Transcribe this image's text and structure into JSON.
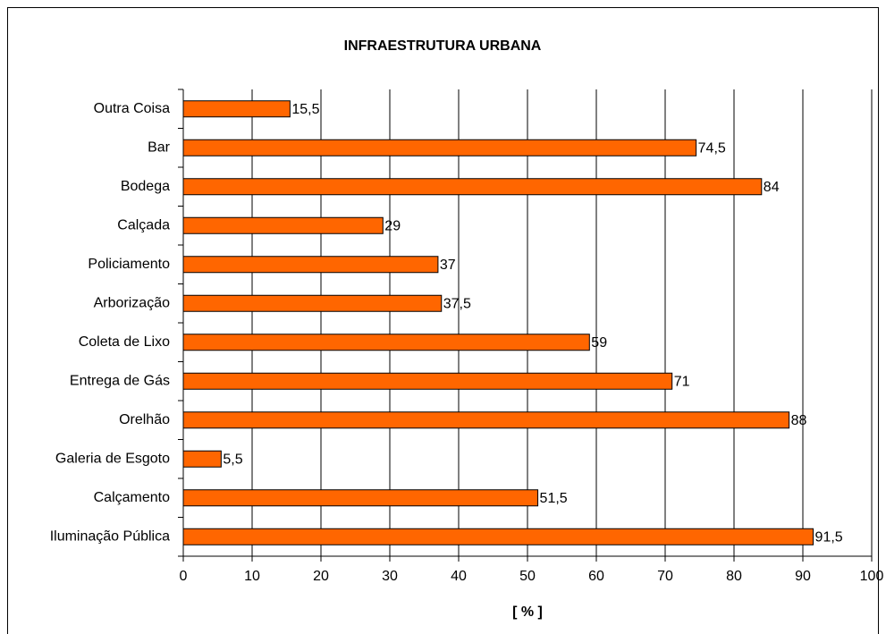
{
  "chart_data": {
    "type": "hbar",
    "title": "INFRAESTRUTURA URBANA",
    "x_label": "[ % ]",
    "categories": [
      "Outra Coisa",
      "Bar",
      "Bodega",
      "Calçada",
      "Policiamento",
      "Arborização",
      "Coleta de Lixo",
      "Entrega de Gás",
      "Orelhão",
      "Galeria de Esgoto",
      "Calçamento",
      "Iluminação Pública"
    ],
    "values": [
      15.5,
      74.5,
      84,
      29,
      37,
      37.5,
      59,
      71,
      88,
      5.5,
      51.5,
      91.5
    ],
    "value_labels": [
      "15,5",
      "74,5",
      "84",
      "29",
      "37",
      "37,5",
      "59",
      "71",
      "88",
      "5,5",
      "51,5",
      "91,5"
    ],
    "color": "#ff6600",
    "xlim": [
      0,
      100
    ],
    "xticks": [
      0,
      10,
      20,
      30,
      40,
      50,
      60,
      70,
      80,
      90,
      100
    ],
    "grid": true
  }
}
